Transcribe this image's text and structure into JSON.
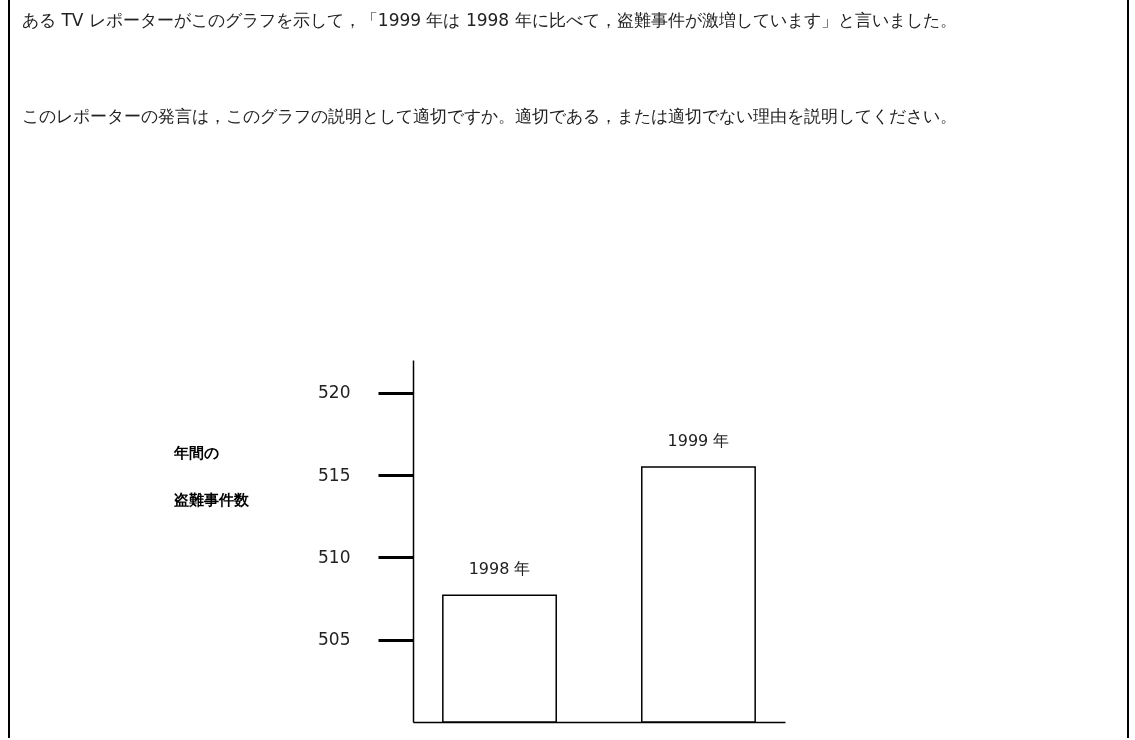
{
  "chart_data": {
    "type": "bar",
    "title": "ある TV レポーターがこのグラフを示して，「1999 年は 1998 年に比べて，盗難事件が激増しています」と言いました。",
    "subtitle": "このレポーターの発言は，このグラフの説明として適切ですか。適切である，または適切でない理由を説明してください。",
    "ylabel": "年間の盗難事件数",
    "categories": [
      "1998 年",
      "1999 年"
    ],
    "values": [
      507.7,
      515.5
    ],
    "color": "#000000",
    "ylim": [
      500,
      522
    ],
    "yticks": [
      505,
      510,
      515,
      520
    ],
    "grid": false
  }
}
